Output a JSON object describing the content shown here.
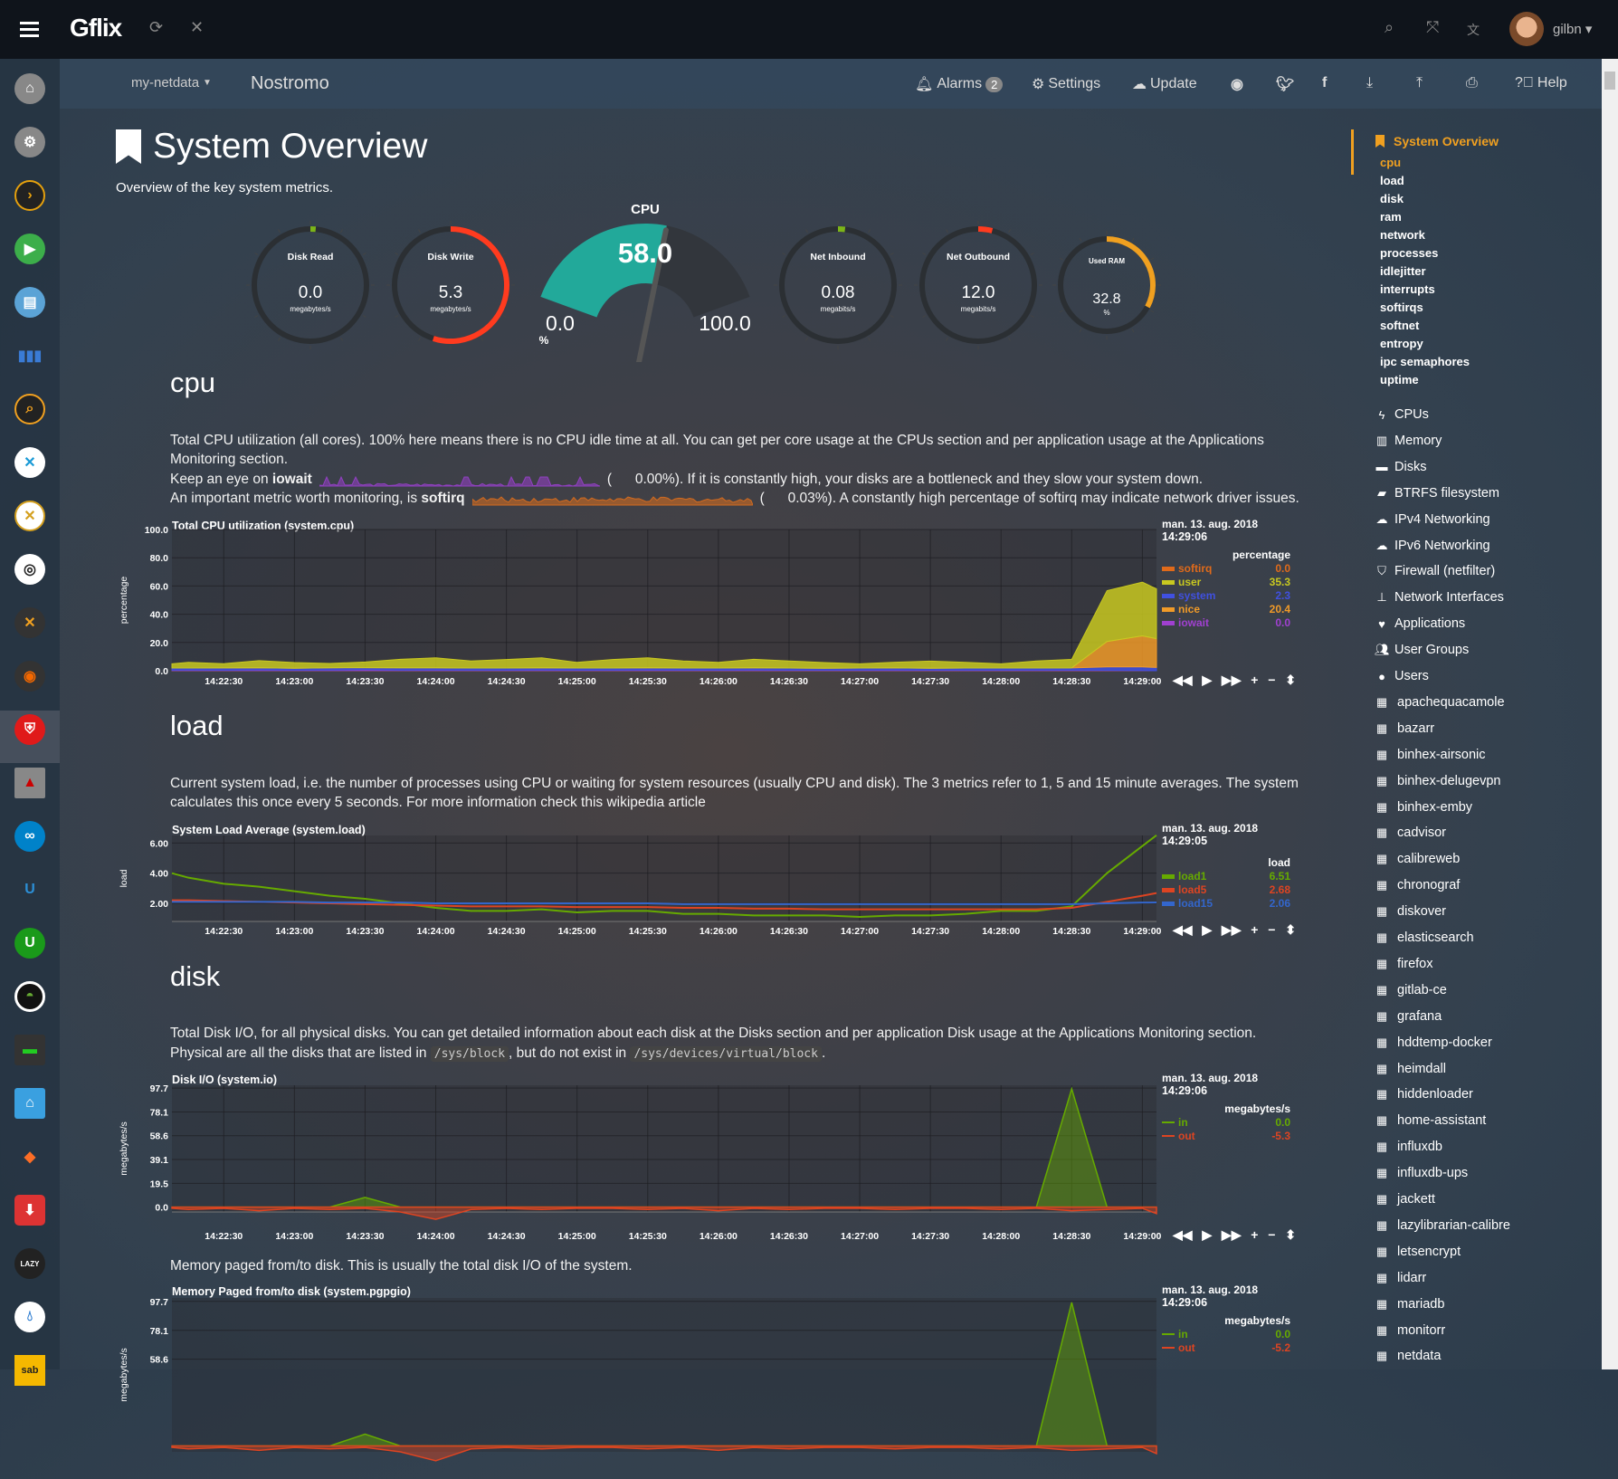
{
  "topbar": {
    "brand": "Gflix",
    "user": "gilbn",
    "icons": [
      "hamburger-icon",
      "refresh-icon",
      "close-icon",
      "search-icon",
      "fullscreen-icon",
      "translate-icon",
      "avatar"
    ]
  },
  "navbar": {
    "host_menu": "my-netdata",
    "host_name": "Nostromo",
    "alarms_label": "Alarms",
    "alarms_count": "2",
    "settings_label": "Settings",
    "update_label": "Update",
    "help_label": "Help",
    "icons": [
      "github-icon",
      "twitter-icon",
      "facebook-icon",
      "download-icon",
      "upload-icon",
      "print-icon"
    ]
  },
  "leftbar": {
    "icons": [
      "home",
      "settings",
      "plex",
      "sonarr",
      "calibre",
      "audio",
      "ombi",
      "emby",
      "jellyfin",
      "radarr",
      "tautulli",
      "grafana",
      "bitwarden",
      "redis",
      "nextcloud",
      "unifi",
      "unmanic",
      "diskover",
      "organizr",
      "home-assistant",
      "gitlab",
      "youtube-dl",
      "lazylibrarian",
      "deluge",
      "sabnzbd"
    ],
    "selected": "bitwarden"
  },
  "page": {
    "title": "System Overview",
    "subtitle": "Overview of the key system metrics."
  },
  "gauges": [
    {
      "title": "Disk Read",
      "value": "0.0",
      "unit": "megabytes/s",
      "fill": 0.01,
      "color": "#7cb518"
    },
    {
      "title": "Disk Write",
      "value": "5.3",
      "unit": "megabytes/s",
      "fill": 0.55,
      "color": "#ff3b1f"
    },
    {
      "title": "Net Inbound",
      "value": "0.08",
      "unit": "megabits/s",
      "fill": 0.02,
      "color": "#7cb518"
    },
    {
      "title": "Net Outbound",
      "value": "12.0",
      "unit": "megabits/s",
      "fill": 0.04,
      "color": "#ff3b1f"
    },
    {
      "title": "Used RAM",
      "value": "32.8",
      "unit": "%",
      "fill": 0.328,
      "color": "#f0a020"
    }
  ],
  "cpu_gauge": {
    "title": "CPU",
    "value": "58.0",
    "min": "0.0",
    "max": "100.0",
    "unit": "%",
    "fill": 0.58,
    "color": "#22a99a"
  },
  "sections": {
    "cpu": {
      "heading": "cpu",
      "desc1": "Total CPU utilization (all cores). 100% here means there is no CPU idle time at all. You can get per core usage at the CPUs section and per application usage at the Applications",
      "desc2": "Monitoring section.",
      "iowait_pre": "Keep an eye on ",
      "iowait_word": "iowait",
      "iowait_val": "(      0.00%).",
      "iowait_post": " If it is constantly high, your disks are a bottleneck and they slow your system down.",
      "softirq_pre": "An important metric worth monitoring, is ",
      "softirq_word": "softirq",
      "softirq_val": "(      0.03%).",
      "softirq_post": " A constantly high percentage of softirq may indicate network driver issues."
    },
    "load": {
      "heading": "load",
      "desc1": "Current system load, i.e. the number of processes using CPU or waiting for system resources (usually CPU and disk). The 3 metrics refer to 1, 5 and 15 minute averages. The system",
      "desc2": "calculates this once every 5 seconds. For more information check this wikipedia article"
    },
    "disk": {
      "heading": "disk",
      "desc1": "Total Disk I/O, for all physical disks. You can get detailed information about each disk at the Disks section and per application Disk usage at the Applications Monitoring section.",
      "desc2_pre": "Physical are all the disks that are listed in ",
      "code1": "/sys/block",
      "desc2_mid": ", but do not exist in ",
      "code2": "/sys/devices/virtual/block",
      "desc2_post": ".",
      "desc3": "Memory paged from/to disk. This is usually the total disk I/O of the system."
    }
  },
  "chart_controls": [
    "◀◀",
    "▶",
    "▶▶",
    "+",
    "−",
    "⬍"
  ],
  "chart_data": [
    {
      "type": "area",
      "stacked": true,
      "title": "Total CPU utilization (system.cpu)",
      "ylabel": "percentage",
      "date": "man. 13. aug. 2018",
      "time": "14:29:06",
      "units": "percentage",
      "ylim": [
        0,
        100
      ],
      "yticks": [
        "100.0",
        "80.0",
        "60.0",
        "40.0",
        "20.0",
        "0.0"
      ],
      "xlim": [
        "14:22:08",
        "14:29:06"
      ],
      "xticks": [
        "14:22:30",
        "14:23:00",
        "14:23:30",
        "14:24:00",
        "14:24:30",
        "14:25:00",
        "14:25:30",
        "14:26:00",
        "14:26:30",
        "14:27:00",
        "14:27:30",
        "14:28:00",
        "14:28:30",
        "14:29:00"
      ],
      "x": [
        "14:22:08",
        "14:22:15",
        "14:22:30",
        "14:22:45",
        "14:23:00",
        "14:23:15",
        "14:23:30",
        "14:23:45",
        "14:24:00",
        "14:24:15",
        "14:24:30",
        "14:24:45",
        "14:25:00",
        "14:25:15",
        "14:25:30",
        "14:25:45",
        "14:26:00",
        "14:26:15",
        "14:26:30",
        "14:26:45",
        "14:27:00",
        "14:27:15",
        "14:27:30",
        "14:27:45",
        "14:28:00",
        "14:28:15",
        "14:28:30",
        "14:28:45",
        "14:29:00",
        "14:29:06"
      ],
      "series": [
        {
          "name": "softirq",
          "value": "0.0",
          "color": "#e06a1a",
          "values": [
            0.1,
            0.1,
            0.1,
            0.1,
            0.1,
            0.1,
            0.1,
            0.1,
            0.1,
            0.1,
            0.1,
            0.1,
            0.1,
            0.1,
            0.1,
            0.1,
            0.1,
            0.1,
            0.1,
            0.1,
            0.1,
            0.1,
            0.1,
            0.1,
            0.1,
            0.1,
            0.1,
            0.1,
            0.1,
            0.0
          ]
        },
        {
          "name": "iowait",
          "value": "0.0",
          "color": "#a040d0",
          "values": [
            0.3,
            0.4,
            0.3,
            0.5,
            0.3,
            0.4,
            0.6,
            0.3,
            0.4,
            0.3,
            0.3,
            0.4,
            0.3,
            0.3,
            0.4,
            0.3,
            0.3,
            0.4,
            0.3,
            0.3,
            0.3,
            0.4,
            0.3,
            0.3,
            0.3,
            0.3,
            0.3,
            0.2,
            0.1,
            0.0
          ]
        },
        {
          "name": "system",
          "value": "2.3",
          "color": "#4050e0",
          "values": [
            1.5,
            1.4,
            1.6,
            1.5,
            1.4,
            1.6,
            1.5,
            1.7,
            1.6,
            1.5,
            1.5,
            1.6,
            1.5,
            1.5,
            1.6,
            1.5,
            1.5,
            1.6,
            1.5,
            1.4,
            1.5,
            1.5,
            1.4,
            1.5,
            1.5,
            1.5,
            1.6,
            2.4,
            2.5,
            2.3
          ]
        },
        {
          "name": "nice",
          "value": "20.4",
          "color": "#f09a28",
          "values": [
            0,
            0,
            0,
            0,
            0,
            0,
            0,
            0,
            0,
            0,
            0,
            0,
            0,
            0,
            0,
            0,
            0,
            0,
            0,
            0,
            0,
            0,
            0,
            0,
            0,
            0,
            0,
            18,
            22,
            20.4
          ]
        },
        {
          "name": "user",
          "value": "35.3",
          "color": "#c8c820",
          "values": [
            3,
            4,
            3,
            5,
            4,
            3,
            4,
            6,
            7,
            5,
            6,
            7,
            4,
            6,
            7,
            5,
            4,
            6,
            5,
            4,
            3,
            4,
            5,
            4,
            3,
            5,
            6,
            36,
            38,
            35.3
          ]
        }
      ]
    },
    {
      "type": "line",
      "title": "System Load Average (system.load)",
      "ylabel": "load",
      "date": "man. 13. aug. 2018",
      "time": "14:29:05",
      "units": "load",
      "ylim": [
        0.8,
        6.5
      ],
      "yticks": [
        "6.00",
        "4.00",
        "2.00"
      ],
      "xlim": [
        "14:22:08",
        "14:29:06"
      ],
      "xticks": [
        "14:22:30",
        "14:23:00",
        "14:23:30",
        "14:24:00",
        "14:24:30",
        "14:25:00",
        "14:25:30",
        "14:26:00",
        "14:26:30",
        "14:27:00",
        "14:27:30",
        "14:28:00",
        "14:28:30",
        "14:29:00"
      ],
      "x": [
        "14:22:08",
        "14:22:15",
        "14:22:30",
        "14:22:45",
        "14:23:00",
        "14:23:15",
        "14:23:30",
        "14:23:45",
        "14:24:00",
        "14:24:15",
        "14:24:30",
        "14:24:45",
        "14:25:00",
        "14:25:15",
        "14:25:30",
        "14:25:45",
        "14:26:00",
        "14:26:15",
        "14:26:30",
        "14:26:45",
        "14:27:00",
        "14:27:15",
        "14:27:30",
        "14:27:45",
        "14:28:00",
        "14:28:15",
        "14:28:30",
        "14:28:45",
        "14:29:00",
        "14:29:06"
      ],
      "series": [
        {
          "name": "load1",
          "value": "6.51",
          "color": "#66aa00",
          "values": [
            4.0,
            3.7,
            3.3,
            3.1,
            2.8,
            2.5,
            2.3,
            2.0,
            1.7,
            1.5,
            1.5,
            1.6,
            1.4,
            1.5,
            1.5,
            1.3,
            1.3,
            1.2,
            1.2,
            1.2,
            1.1,
            1.2,
            1.2,
            1.3,
            1.5,
            1.5,
            1.8,
            4.0,
            5.8,
            6.51
          ]
        },
        {
          "name": "load5",
          "value": "2.68",
          "color": "#dd4422",
          "values": [
            2.2,
            2.2,
            2.15,
            2.1,
            2.05,
            2.0,
            1.95,
            1.9,
            1.85,
            1.8,
            1.8,
            1.8,
            1.75,
            1.75,
            1.75,
            1.7,
            1.7,
            1.65,
            1.65,
            1.6,
            1.6,
            1.6,
            1.6,
            1.6,
            1.6,
            1.6,
            1.7,
            2.1,
            2.5,
            2.68
          ]
        },
        {
          "name": "load15",
          "value": "2.06",
          "color": "#3366cc",
          "values": [
            2.1,
            2.1,
            2.1,
            2.1,
            2.1,
            2.05,
            2.05,
            2.05,
            2.0,
            2.0,
            2.0,
            2.0,
            2.0,
            2.0,
            2.0,
            1.95,
            1.95,
            1.95,
            1.95,
            1.95,
            1.95,
            1.95,
            1.95,
            1.95,
            1.95,
            1.95,
            1.95,
            2.0,
            2.05,
            2.06
          ]
        }
      ]
    },
    {
      "type": "area",
      "title": "Disk I/O (system.io)",
      "ylabel": "megabytes/s",
      "date": "man. 13. aug. 2018",
      "time": "14:29:06",
      "units": "megabytes/s",
      "ylim": [
        -4,
        100
      ],
      "yticks": [
        "97.7",
        "78.1",
        "58.6",
        "39.1",
        "19.5",
        "0.0"
      ],
      "xlim": [
        "14:22:08",
        "14:29:06"
      ],
      "xticks": [
        "14:22:30",
        "14:23:00",
        "14:23:30",
        "14:24:00",
        "14:24:30",
        "14:25:00",
        "14:25:30",
        "14:26:00",
        "14:26:30",
        "14:27:00",
        "14:27:30",
        "14:28:00",
        "14:28:30",
        "14:29:00"
      ],
      "x": [
        "14:22:08",
        "14:22:15",
        "14:22:30",
        "14:22:45",
        "14:23:00",
        "14:23:15",
        "14:23:30",
        "14:23:45",
        "14:24:00",
        "14:24:15",
        "14:24:30",
        "14:24:45",
        "14:25:00",
        "14:25:15",
        "14:25:30",
        "14:25:45",
        "14:26:00",
        "14:26:15",
        "14:26:30",
        "14:26:45",
        "14:27:00",
        "14:27:15",
        "14:27:30",
        "14:27:45",
        "14:28:00",
        "14:28:15",
        "14:28:30",
        "14:28:45",
        "14:29:00",
        "14:29:06"
      ],
      "series": [
        {
          "name": "in",
          "value": "0.0",
          "color": "#66aa00",
          "values": [
            0,
            0,
            0,
            0,
            0,
            0,
            8,
            0,
            0,
            0,
            0,
            0,
            0,
            0,
            0,
            0,
            0,
            0,
            0,
            0,
            0,
            0,
            0,
            0,
            0,
            0,
            97,
            0,
            0,
            0.0
          ]
        },
        {
          "name": "out",
          "value": "-5.3",
          "color": "#dd4422",
          "values": [
            -1,
            -2,
            -1,
            -3,
            -1,
            -2,
            -1,
            -4,
            -10,
            -2,
            -1,
            -2,
            -1,
            -1,
            -2,
            -1,
            -3,
            -1,
            -2,
            -1,
            -1,
            -2,
            -1,
            -1,
            -2,
            -1,
            -3,
            -2,
            -1,
            -5.3
          ]
        }
      ]
    },
    {
      "type": "area",
      "title": "Memory Paged from/to disk (system.pgpgio)",
      "ylabel": "megabytes/s",
      "date": "man. 13. aug. 2018",
      "time": "14:29:06",
      "units": "megabytes/s",
      "ylim": [
        -4,
        100
      ],
      "yticks": [
        "97.7",
        "78.1",
        "58.6"
      ],
      "xlim": [
        "14:22:08",
        "14:29:06"
      ],
      "x": [
        "14:22:08",
        "14:22:15",
        "14:22:30",
        "14:22:45",
        "14:23:00",
        "14:23:15",
        "14:23:30",
        "14:23:45",
        "14:24:00",
        "14:24:15",
        "14:24:30",
        "14:24:45",
        "14:25:00",
        "14:25:15",
        "14:25:30",
        "14:25:45",
        "14:26:00",
        "14:26:15",
        "14:26:30",
        "14:26:45",
        "14:27:00",
        "14:27:15",
        "14:27:30",
        "14:27:45",
        "14:28:00",
        "14:28:15",
        "14:28:30",
        "14:28:45",
        "14:29:00",
        "14:29:06"
      ],
      "series": [
        {
          "name": "in",
          "value": "0.0",
          "color": "#66aa00",
          "values": [
            0,
            0,
            0,
            0,
            0,
            0,
            8,
            0,
            0,
            0,
            0,
            0,
            0,
            0,
            0,
            0,
            0,
            0,
            0,
            0,
            0,
            0,
            0,
            0,
            0,
            0,
            97,
            0,
            0,
            0.0
          ]
        },
        {
          "name": "out",
          "value": "-5.2",
          "color": "#dd4422",
          "values": [
            -1,
            -2,
            -1,
            -3,
            -1,
            -2,
            -1,
            -4,
            -10,
            -2,
            -1,
            -2,
            -1,
            -1,
            -2,
            -1,
            -3,
            -1,
            -2,
            -1,
            -1,
            -2,
            -1,
            -1,
            -2,
            -1,
            -3,
            -2,
            -1,
            -5.2
          ]
        }
      ]
    }
  ],
  "rightnav": {
    "active": "System Overview",
    "subitems": [
      "cpu",
      "load",
      "disk",
      "ram",
      "network",
      "processes",
      "idlejitter",
      "interrupts",
      "softirqs",
      "softnet",
      "entropy",
      "ipc semaphores",
      "uptime"
    ],
    "sections": [
      {
        "label": "CPUs",
        "icon": "bolt-icon"
      },
      {
        "label": "Memory",
        "icon": "memory-chip-icon"
      },
      {
        "label": "Disks",
        "icon": "hdd-icon"
      },
      {
        "label": "BTRFS filesystem",
        "icon": "folder-open-icon"
      },
      {
        "label": "IPv4 Networking",
        "icon": "cloud-icon"
      },
      {
        "label": "IPv6 Networking",
        "icon": "cloud-icon"
      },
      {
        "label": "Firewall (netfilter)",
        "icon": "shield-icon"
      },
      {
        "label": "Network Interfaces",
        "icon": "sitemap-icon"
      },
      {
        "label": "Applications",
        "icon": "heartbeat-icon"
      },
      {
        "label": "User Groups",
        "icon": "users-icon"
      },
      {
        "label": "Users",
        "icon": "user-icon"
      },
      {
        "label": "apachequacamole",
        "icon": "grid-icon"
      },
      {
        "label": "bazarr",
        "icon": "grid-icon"
      },
      {
        "label": "binhex-airsonic",
        "icon": "grid-icon"
      },
      {
        "label": "binhex-delugevpn",
        "icon": "grid-icon"
      },
      {
        "label": "binhex-emby",
        "icon": "grid-icon"
      },
      {
        "label": "cadvisor",
        "icon": "grid-icon"
      },
      {
        "label": "calibreweb",
        "icon": "grid-icon"
      },
      {
        "label": "chronograf",
        "icon": "grid-icon"
      },
      {
        "label": "diskover",
        "icon": "grid-icon"
      },
      {
        "label": "elasticsearch",
        "icon": "grid-icon"
      },
      {
        "label": "firefox",
        "icon": "grid-icon"
      },
      {
        "label": "gitlab-ce",
        "icon": "grid-icon"
      },
      {
        "label": "grafana",
        "icon": "grid-icon"
      },
      {
        "label": "hddtemp-docker",
        "icon": "grid-icon"
      },
      {
        "label": "heimdall",
        "icon": "grid-icon"
      },
      {
        "label": "hiddenloader",
        "icon": "grid-icon"
      },
      {
        "label": "home-assistant",
        "icon": "grid-icon"
      },
      {
        "label": "influxdb",
        "icon": "grid-icon"
      },
      {
        "label": "influxdb-ups",
        "icon": "grid-icon"
      },
      {
        "label": "jackett",
        "icon": "grid-icon"
      },
      {
        "label": "lazylibrarian-calibre",
        "icon": "grid-icon"
      },
      {
        "label": "letsencrypt",
        "icon": "grid-icon"
      },
      {
        "label": "lidarr",
        "icon": "grid-icon"
      },
      {
        "label": "mariadb",
        "icon": "grid-icon"
      },
      {
        "label": "monitorr",
        "icon": "grid-icon"
      },
      {
        "label": "netdata",
        "icon": "grid-icon"
      }
    ]
  },
  "colors": {
    "accent": "#f0a020",
    "topbar": "#0f141b",
    "gauge_teal": "#22a99a"
  }
}
